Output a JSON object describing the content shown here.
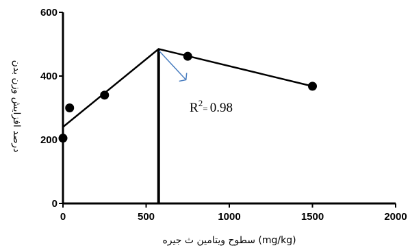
{
  "chart_data": {
    "type": "scatter",
    "title": "",
    "xlabel": "سطوح ویتامین ث جیره (mg/kg)",
    "ylabel": "درصد افزایش وزن بدن",
    "xlim": [
      0,
      2000
    ],
    "ylim": [
      0,
      600
    ],
    "x_ticks": [
      "0",
      "500",
      "1000",
      "1500",
      "2000"
    ],
    "y_ticks": [
      "0",
      "200",
      "400",
      "600"
    ],
    "grid": false,
    "points": [
      {
        "x": 0,
        "y": 205
      },
      {
        "x": 40,
        "y": 300
      },
      {
        "x": 250,
        "y": 340
      },
      {
        "x": 750,
        "y": 462
      },
      {
        "x": 1500,
        "y": 368
      }
    ],
    "broken_line": [
      {
        "x": 0,
        "y": 240
      },
      {
        "x": 575,
        "y": 485
      },
      {
        "x": 1500,
        "y": 368
      }
    ],
    "breakpoint_x": 575,
    "annotation": {
      "r": "R",
      "exp": "2",
      "eq": "= ",
      "value": "0.98"
    },
    "colors": {
      "arrow": "#4a7ec0",
      "ink": "#000000"
    }
  }
}
